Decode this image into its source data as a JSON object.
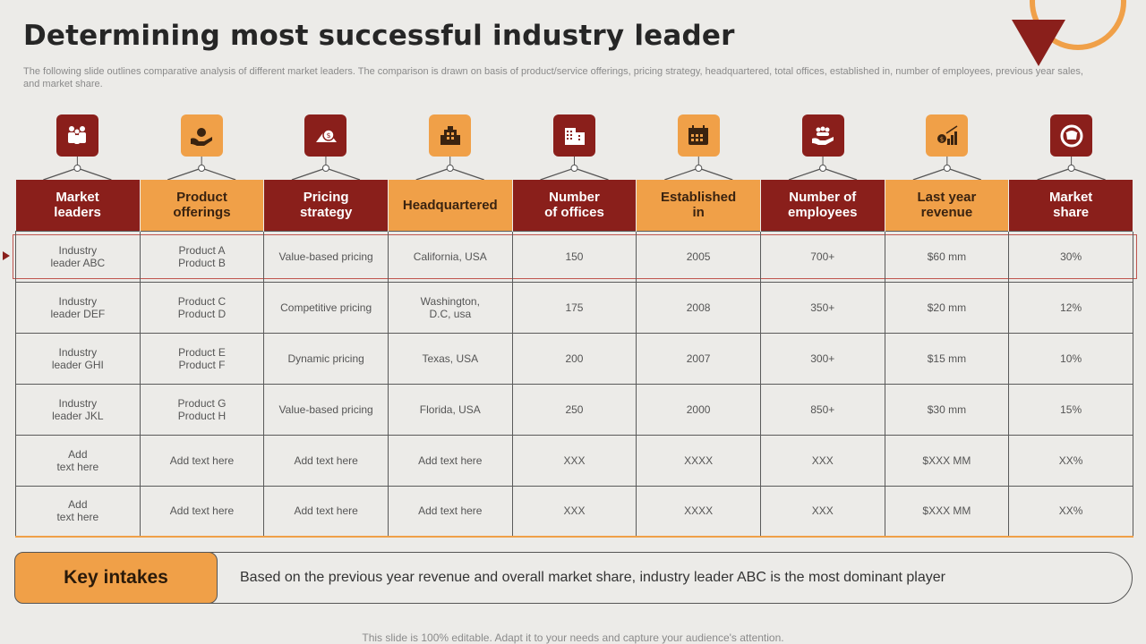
{
  "title": "Determining most successful industry leader",
  "subtitle": "The following slide outlines comparative analysis of different market leaders. The comparison is drawn on basis of product/service offerings, pricing strategy, headquartered, total offices, established in, number of employees, previous year sales, and market share.",
  "colors": {
    "accent_red": "#8a1f1b",
    "accent_orange": "#f0a048",
    "background": "#ecebe8"
  },
  "columns": [
    {
      "label": "Market\nleaders",
      "icon": "people-group-icon",
      "color": "red"
    },
    {
      "label": "Product\nofferings",
      "icon": "hand-offering-icon",
      "color": "orange"
    },
    {
      "label": "Pricing\nstrategy",
      "icon": "price-tag-icon",
      "color": "red"
    },
    {
      "label": "Headquartered",
      "icon": "building-icon",
      "color": "orange"
    },
    {
      "label": "Number\nof offices",
      "icon": "office-buildings-icon",
      "color": "red"
    },
    {
      "label": "Established\nin",
      "icon": "calendar-icon",
      "color": "orange"
    },
    {
      "label": "Number  of\nemployees",
      "icon": "team-hand-icon",
      "color": "red"
    },
    {
      "label": "Last year\nrevenue",
      "icon": "revenue-chart-icon",
      "color": "orange"
    },
    {
      "label": "Market\nshare",
      "icon": "market-share-icon",
      "color": "red"
    }
  ],
  "rows": [
    [
      "Industry\nleader ABC",
      "Product A\nProduct B",
      "Value-based pricing",
      "California, USA",
      "150",
      "2005",
      "700+",
      "$60 mm",
      "30%"
    ],
    [
      "Industry\nleader DEF",
      "Product C\nProduct D",
      "Competitive pricing",
      "Washington,\nD.C, usa",
      "175",
      "2008",
      "350+",
      "$20 mm",
      "12%"
    ],
    [
      "Industry\nleader GHI",
      "Product E\nProduct F",
      "Dynamic pricing",
      "Texas, USA",
      "200",
      "2007",
      "300+",
      "$15 mm",
      "10%"
    ],
    [
      "Industry\nleader JKL",
      "Product G\nProduct H",
      "Value-based pricing",
      "Florida, USA",
      "250",
      "2000",
      "850+",
      "$30 mm",
      "15%"
    ],
    [
      "Add\ntext here",
      "Add text here",
      "Add text here",
      "Add text here",
      "XXX",
      "XXXX",
      "XXX",
      "$XXX  MM",
      "XX%"
    ],
    [
      "Add\ntext here",
      "Add text here",
      "Add text here",
      "Add text here",
      "XXX",
      "XXXX",
      "XXX",
      "$XXX  MM",
      "XX%"
    ]
  ],
  "key_intakes": {
    "label": "Key intakes",
    "text": "Based on the previous year revenue and overall market share, industry leader ABC is the most dominant player"
  },
  "footer": "This slide is 100% editable. Adapt it to your needs and capture your audience's attention."
}
